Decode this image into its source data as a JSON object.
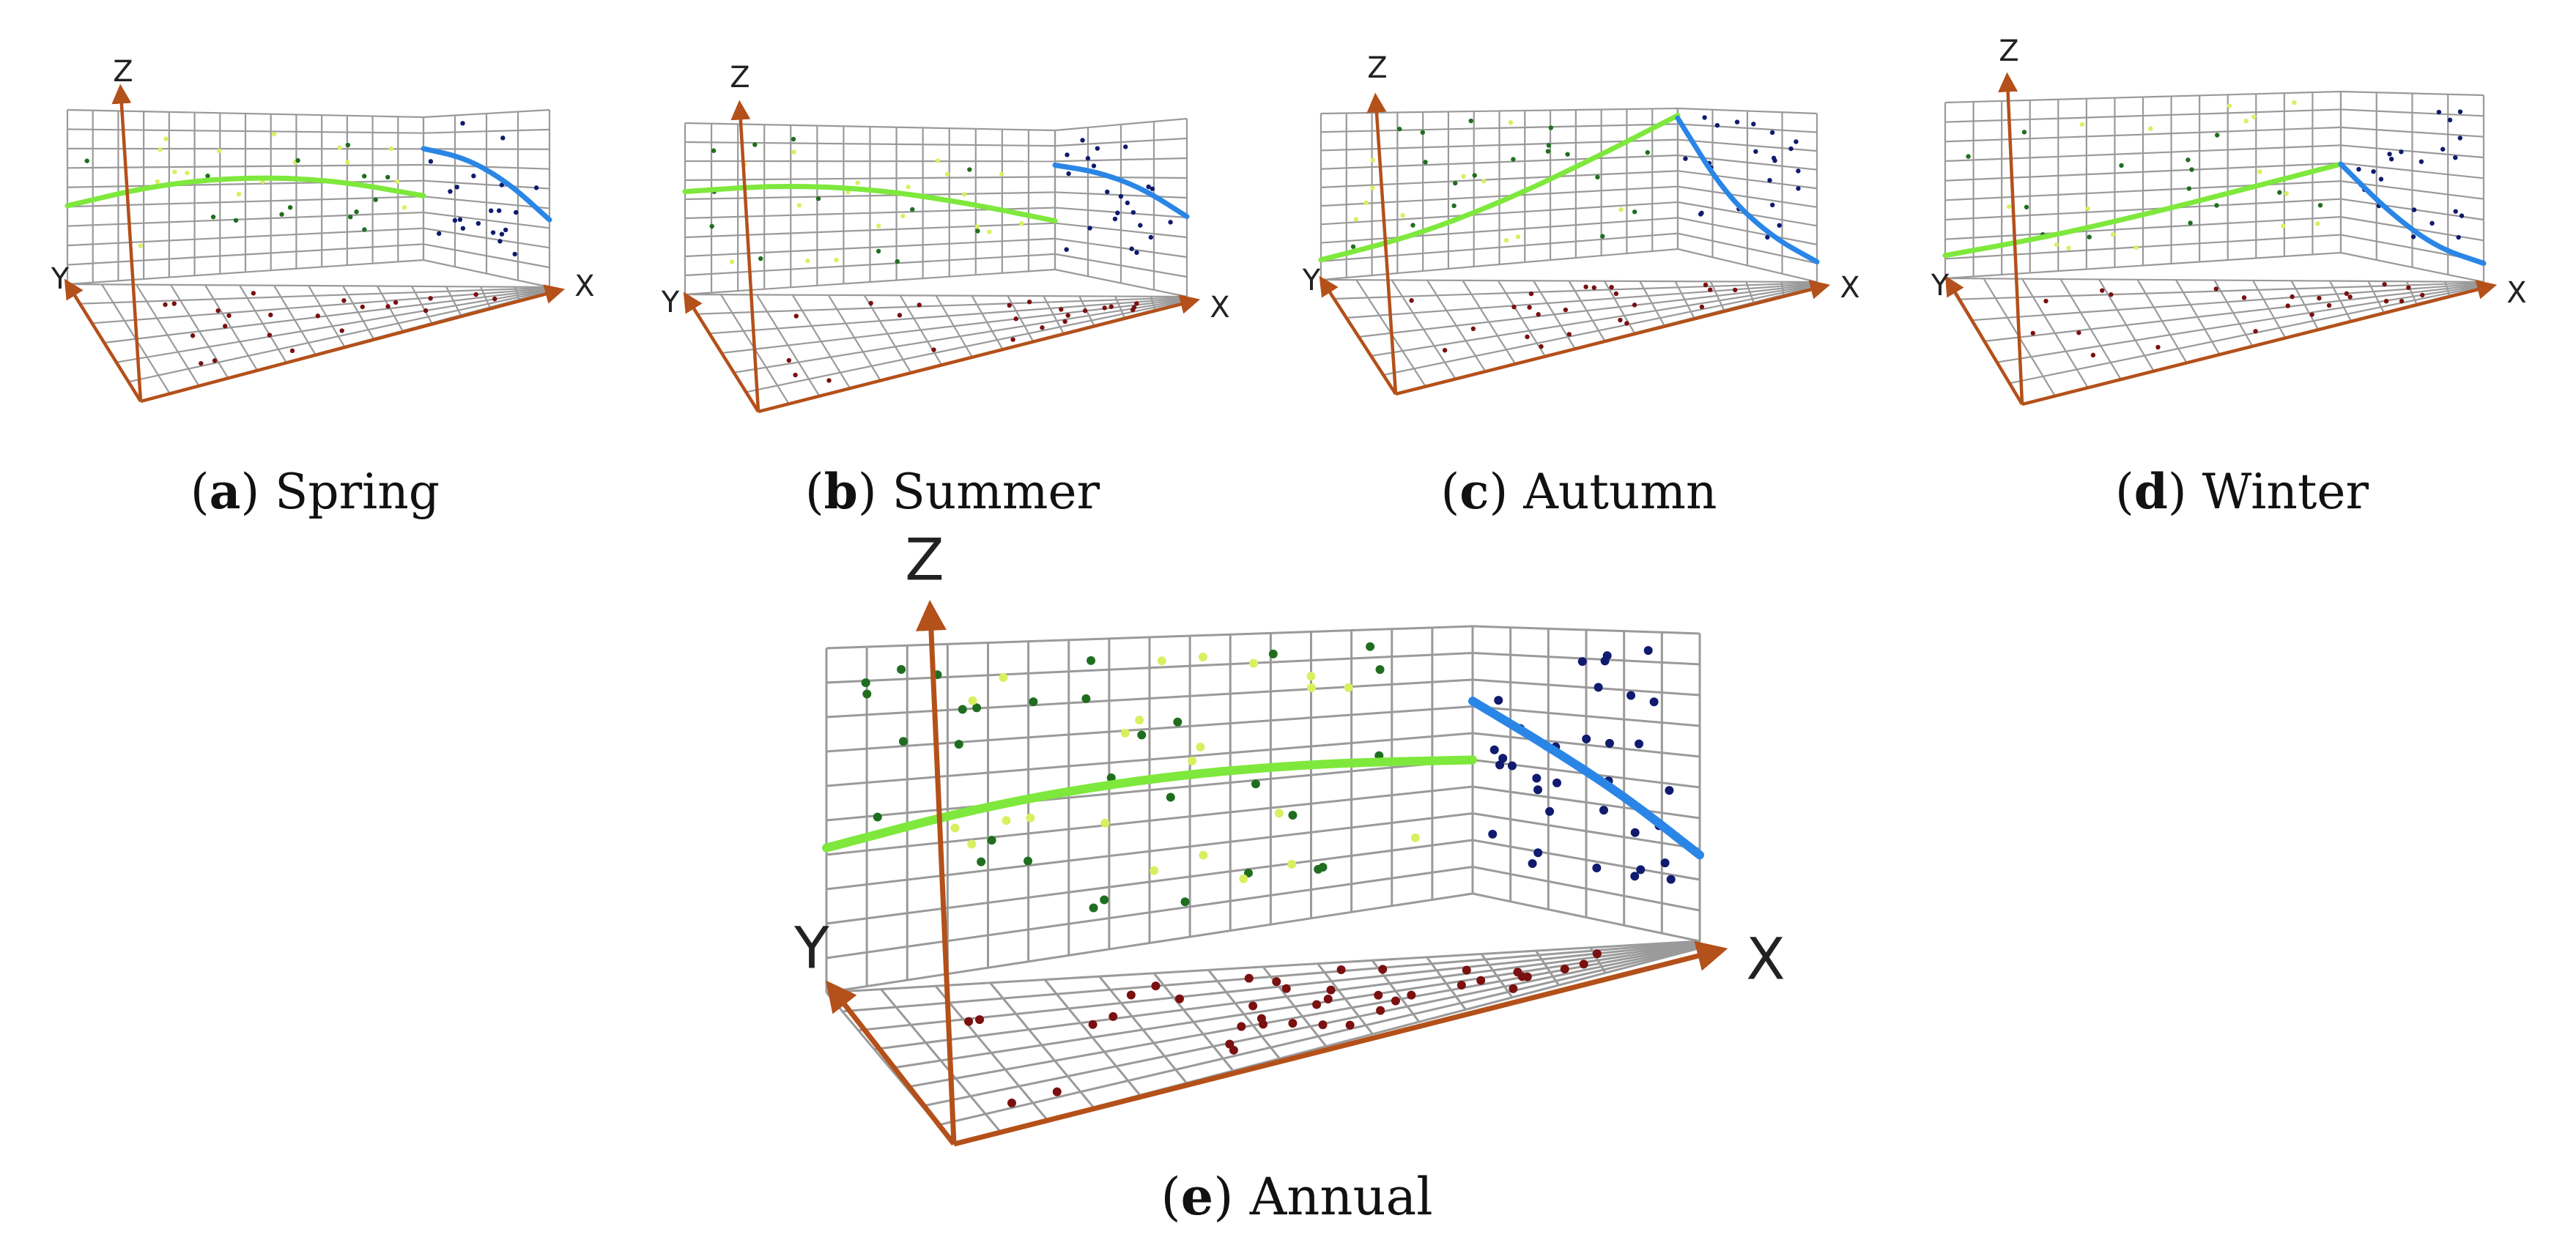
{
  "colors": {
    "grid": "#9a9a9a",
    "axis": "#b4501a",
    "fit_green": "#7ee83c",
    "fit_blue": "#2a86e6",
    "pt_dark_green": "#1f6e1f",
    "pt_yellow_green": "#d8f060",
    "pt_navy": "#101a6e",
    "pt_maroon": "#7a1010"
  },
  "axis_labels": {
    "x": "X",
    "y": "Y",
    "z": "Z"
  },
  "chart_data": [
    {
      "type": "scatter",
      "panel": "a",
      "caption_letter": "a",
      "caption_text": "Spring",
      "fit_green": [
        0.45,
        0.56,
        0.6,
        0.57,
        0.45
      ],
      "fit_blue": [
        0.78,
        0.72,
        0.58,
        0.38
      ]
    },
    {
      "type": "scatter",
      "panel": "b",
      "caption_letter": "b",
      "caption_text": "Summer",
      "fit_green": [
        0.6,
        0.63,
        0.6,
        0.5,
        0.35
      ],
      "fit_blue": [
        0.75,
        0.7,
        0.6,
        0.45
      ]
    },
    {
      "type": "scatter",
      "panel": "c",
      "caption_letter": "c",
      "caption_text": "Autumn",
      "fit_green": [
        0.12,
        0.22,
        0.4,
        0.65,
        0.95
      ],
      "fit_blue": [
        0.93,
        0.45,
        0.22,
        0.12
      ]
    },
    {
      "type": "scatter",
      "panel": "d",
      "caption_letter": "d",
      "caption_text": "Winter",
      "fit_green": [
        0.13,
        0.2,
        0.3,
        0.42,
        0.55
      ],
      "fit_blue": [
        0.55,
        0.3,
        0.14,
        0.1
      ]
    },
    {
      "type": "scatter",
      "panel": "e",
      "caption_letter": "e",
      "caption_text": "Annual",
      "fit_green": [
        0.42,
        0.5,
        0.54,
        0.54,
        0.5
      ],
      "fit_blue": [
        0.72,
        0.58,
        0.44,
        0.28
      ]
    }
  ]
}
